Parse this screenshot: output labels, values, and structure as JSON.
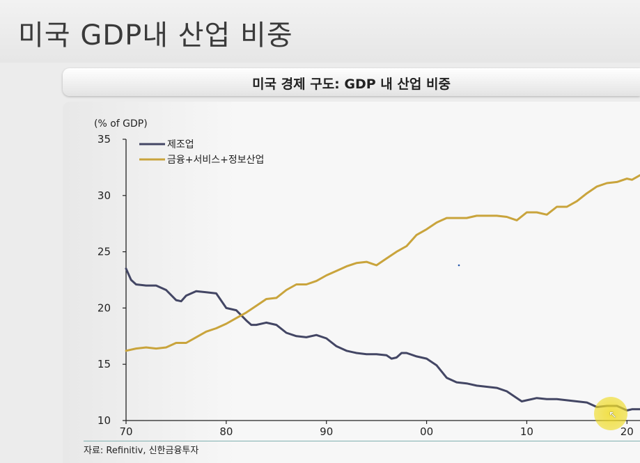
{
  "slide": {
    "title": "미국 GDP내 산업 비중"
  },
  "chart_header": {
    "title": "미국 경제 구도: GDP 내 산업 비중"
  },
  "source": "자료: Refinitiv, 신한금융투자",
  "chart_data": {
    "type": "line",
    "title": "미국 경제 구도: GDP 내 산업 비중",
    "ylabel": "(% of GDP)",
    "xlabel": "",
    "ylim": [
      10,
      35
    ],
    "yticks": [
      10,
      15,
      20,
      25,
      30,
      35
    ],
    "xlim": [
      1970,
      2021.3
    ],
    "xticks": [
      {
        "value": 1970,
        "label": "70"
      },
      {
        "value": 1980,
        "label": "80"
      },
      {
        "value": 1990,
        "label": "90"
      },
      {
        "value": 2000,
        "label": "00"
      },
      {
        "value": 2010,
        "label": "10"
      },
      {
        "value": 2020,
        "label": "20"
      }
    ],
    "legend_position": "top-left",
    "series": [
      {
        "name": "제조업",
        "color": "#434664",
        "points": [
          [
            1970,
            23.5
          ],
          [
            1970.5,
            22.5
          ],
          [
            1971,
            22.1
          ],
          [
            1972,
            22.0
          ],
          [
            1973,
            22.0
          ],
          [
            1974,
            21.6
          ],
          [
            1975,
            20.7
          ],
          [
            1975.5,
            20.6
          ],
          [
            1976,
            21.1
          ],
          [
            1977,
            21.5
          ],
          [
            1978,
            21.4
          ],
          [
            1979,
            21.3
          ],
          [
            1980,
            20.0
          ],
          [
            1981,
            19.8
          ],
          [
            1982,
            18.9
          ],
          [
            1982.5,
            18.5
          ],
          [
            1983,
            18.5
          ],
          [
            1984,
            18.7
          ],
          [
            1985,
            18.5
          ],
          [
            1986,
            17.8
          ],
          [
            1987,
            17.5
          ],
          [
            1988,
            17.4
          ],
          [
            1989,
            17.6
          ],
          [
            1990,
            17.3
          ],
          [
            1991,
            16.6
          ],
          [
            1992,
            16.2
          ],
          [
            1993,
            16.0
          ],
          [
            1994,
            15.9
          ],
          [
            1995,
            15.9
          ],
          [
            1996,
            15.8
          ],
          [
            1996.5,
            15.5
          ],
          [
            1997,
            15.6
          ],
          [
            1997.5,
            16.0
          ],
          [
            1998,
            16.0
          ],
          [
            1999,
            15.7
          ],
          [
            2000,
            15.5
          ],
          [
            2001,
            14.9
          ],
          [
            2002,
            13.8
          ],
          [
            2003,
            13.4
          ],
          [
            2004,
            13.3
          ],
          [
            2005,
            13.1
          ],
          [
            2006,
            13.0
          ],
          [
            2007,
            12.9
          ],
          [
            2008,
            12.6
          ],
          [
            2009,
            12.0
          ],
          [
            2009.5,
            11.7
          ],
          [
            2010,
            11.8
          ],
          [
            2011,
            12.0
          ],
          [
            2012,
            11.9
          ],
          [
            2013,
            11.9
          ],
          [
            2014,
            11.8
          ],
          [
            2015,
            11.7
          ],
          [
            2016,
            11.6
          ],
          [
            2017,
            11.2
          ],
          [
            2018,
            11.3
          ],
          [
            2019,
            11.3
          ],
          [
            2020,
            10.9
          ],
          [
            2020.5,
            11.0
          ],
          [
            2021.3,
            11.0
          ]
        ]
      },
      {
        "name": "금융+서비스+정보산업",
        "color": "#c9a43c",
        "points": [
          [
            1970,
            16.2
          ],
          [
            1971,
            16.4
          ],
          [
            1972,
            16.5
          ],
          [
            1973,
            16.4
          ],
          [
            1974,
            16.5
          ],
          [
            1975,
            16.9
          ],
          [
            1976,
            16.9
          ],
          [
            1977,
            17.4
          ],
          [
            1978,
            17.9
          ],
          [
            1979,
            18.2
          ],
          [
            1980,
            18.6
          ],
          [
            1981,
            19.1
          ],
          [
            1982,
            19.6
          ],
          [
            1983,
            20.2
          ],
          [
            1984,
            20.8
          ],
          [
            1985,
            20.9
          ],
          [
            1986,
            21.6
          ],
          [
            1987,
            22.1
          ],
          [
            1988,
            22.1
          ],
          [
            1989,
            22.4
          ],
          [
            1990,
            22.9
          ],
          [
            1991,
            23.3
          ],
          [
            1992,
            23.7
          ],
          [
            1993,
            24.0
          ],
          [
            1994,
            24.1
          ],
          [
            1995,
            23.8
          ],
          [
            1996,
            24.4
          ],
          [
            1997,
            25.0
          ],
          [
            1998,
            25.5
          ],
          [
            1999,
            26.5
          ],
          [
            2000,
            27.0
          ],
          [
            2001,
            27.6
          ],
          [
            2002,
            28.0
          ],
          [
            2003,
            28.0
          ],
          [
            2004,
            28.0
          ],
          [
            2005,
            28.2
          ],
          [
            2006,
            28.2
          ],
          [
            2007,
            28.2
          ],
          [
            2008,
            28.1
          ],
          [
            2009,
            27.8
          ],
          [
            2010,
            28.5
          ],
          [
            2011,
            28.5
          ],
          [
            2012,
            28.3
          ],
          [
            2013,
            29.0
          ],
          [
            2014,
            29.0
          ],
          [
            2015,
            29.5
          ],
          [
            2016,
            30.2
          ],
          [
            2017,
            30.8
          ],
          [
            2018,
            31.1
          ],
          [
            2019,
            31.2
          ],
          [
            2020,
            31.5
          ],
          [
            2020.5,
            31.4
          ],
          [
            2021.3,
            31.8
          ]
        ]
      }
    ]
  }
}
